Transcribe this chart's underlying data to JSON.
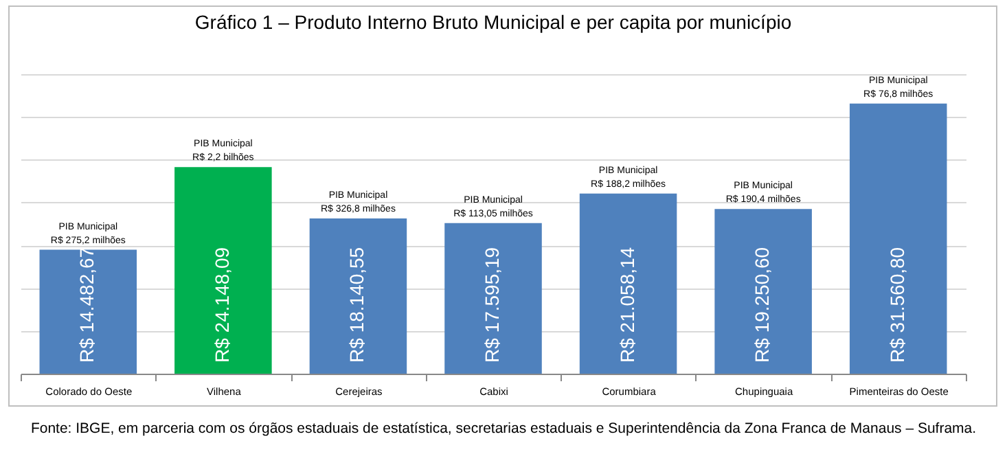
{
  "chart_data": {
    "type": "bar",
    "title": "Gráfico 1 – Produto Interno Bruto Municipal e per capita por município",
    "categories": [
      "Colorado do Oeste",
      "Vilhena",
      "Cerejeiras",
      "Cabixi",
      "Corumbiara",
      "Chupinguaia",
      "Pimenteiras do Oeste"
    ],
    "values": [
      14482.67,
      24148.09,
      18140.55,
      17595.19,
      21058.14,
      19250.6,
      31560.8
    ],
    "colors": [
      "#4f81bd",
      "#00b050",
      "#4f81bd",
      "#4f81bd",
      "#4f81bd",
      "#4f81bd",
      "#4f81bd"
    ],
    "value_labels": [
      "R$ 14.482,67",
      "R$ 24.148,09",
      "R$ 18.140,55",
      "R$ 17.595,19",
      "R$ 21.058,14",
      "R$ 19.250,60",
      "R$ 31.560,80"
    ],
    "grid": "y",
    "tick_labels": "x",
    "annotations": [
      {
        "text": "PIB Municipal\nR$ 275,2 milhões",
        "x": "Colorado do Oeste",
        "y": 14482.67
      },
      {
        "text": "PIB Municipal\nR$ 2,2 bilhões",
        "x": "Vilhena",
        "y": 24148.09
      },
      {
        "text": "PIB Municipal\nR$ 326,8 milhões",
        "x": "Cerejeiras",
        "y": 18140.55
      },
      {
        "text": "PIB Municipal\nR$ 113,05 milhões",
        "x": "Cabixi",
        "y": 17595.19
      },
      {
        "text": "PIB Municipal\nR$ 188,2 milhões",
        "x": "Corumbiara",
        "y": 21058.14
      },
      {
        "text": "PIB Municipal\nR$ 190,4 milhões",
        "x": "Chupinguaia",
        "y": 19250.6
      },
      {
        "text": "PIB Municipal\nR$ 76,8 milhões",
        "x": "Pimenteiras do Oeste",
        "y": 31560.8
      },
      "Fonte: IBGE, em parceria com os órgãos estaduais de estatística, secretarias estaduais e Superintendência da Zona Franca de Manaus – Suframa."
    ]
  }
}
